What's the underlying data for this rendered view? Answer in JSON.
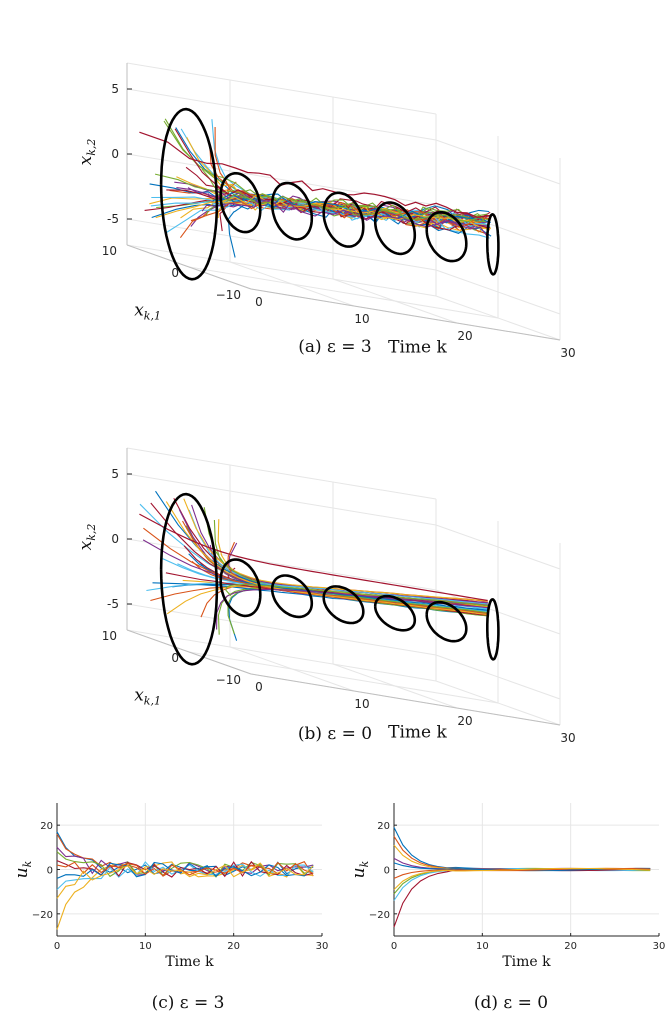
{
  "colors": [
    "#0072BD",
    "#D95319",
    "#EDB120",
    "#7E2F8E",
    "#77AC30",
    "#4DBEEE",
    "#A2142F"
  ],
  "chart_data": [
    {
      "type": "line",
      "panel": "(a)",
      "caption": "(a) ε = 3",
      "xlabel": "Time k",
      "ylabel": "x_{k,1}",
      "zlabel": "x_{k,2}",
      "xlabel_html": "Time k",
      "ylabel_text": "x",
      "ylabel_sub": "k,1",
      "zlabel_text": "x",
      "zlabel_sub": "k,2",
      "xticks": [
        "0",
        "10",
        "20",
        "30"
      ],
      "yticks": [
        "10",
        "0",
        "-10"
      ],
      "zticks": [
        "5",
        "0",
        "-5"
      ],
      "xlim": [
        0,
        30
      ],
      "ylim": [
        -10,
        10
      ],
      "zlim": [
        -7,
        7
      ],
      "n_trajectories": 40,
      "ellipse_times": [
        0,
        5,
        10,
        15,
        20,
        25,
        30
      ],
      "ellipse_radii_x2": [
        6.5,
        2.2,
        2.1,
        2.0,
        1.9,
        1.8,
        2.3
      ],
      "noise": 1.0
    },
    {
      "type": "line",
      "panel": "(b)",
      "caption": "(b) ε = 0",
      "xlabel": "Time k",
      "ylabel": "x_{k,1}",
      "zlabel": "x_{k,2}",
      "ylabel_text": "x",
      "ylabel_sub": "k,1",
      "zlabel_text": "x",
      "zlabel_sub": "k,2",
      "xticks": [
        "0",
        "10",
        "20",
        "30"
      ],
      "yticks": [
        "10",
        "0",
        "-10"
      ],
      "zticks": [
        "5",
        "0",
        "-5"
      ],
      "xlim": [
        0,
        30
      ],
      "ylim": [
        -10,
        10
      ],
      "zlim": [
        -7,
        7
      ],
      "n_trajectories": 40,
      "ellipse_times": [
        0,
        5,
        10,
        15,
        20,
        25,
        30
      ],
      "ellipse_radii_x2": [
        6.5,
        2.1,
        1.5,
        1.3,
        1.2,
        1.4,
        2.3
      ],
      "noise": 0.0
    },
    {
      "type": "line",
      "panel": "(c)",
      "caption": "(c) ε = 3",
      "xlabel": "Time k",
      "ylabel": "u_k",
      "ylabel_text": "u",
      "ylabel_sub": "k",
      "xticks": [
        "0",
        "10",
        "20",
        "30"
      ],
      "yticks": [
        "20",
        "0",
        "-20"
      ],
      "xlim": [
        0,
        30
      ],
      "ylim": [
        -30,
        30
      ],
      "grid": true,
      "initial_values": [
        17,
        16,
        -27,
        10,
        8,
        -9,
        4,
        -4,
        2,
        -13
      ],
      "decay": 0.55,
      "noise_amplitude": 3.5
    },
    {
      "type": "line",
      "panel": "(d)",
      "caption": "(d) ε = 0",
      "xlabel": "Time k",
      "ylabel": "u_k",
      "ylabel_text": "u",
      "ylabel_sub": "k",
      "xticks": [
        "0",
        "10",
        "20",
        "30"
      ],
      "yticks": [
        "20",
        "0",
        "-20"
      ],
      "xlim": [
        0,
        30
      ],
      "ylim": [
        -30,
        30
      ],
      "grid": true,
      "initial_values": [
        19,
        15,
        11,
        5,
        -11,
        -14,
        -26,
        3,
        -4,
        -9
      ],
      "decay": 0.55,
      "noise_amplitude": 0
    }
  ]
}
